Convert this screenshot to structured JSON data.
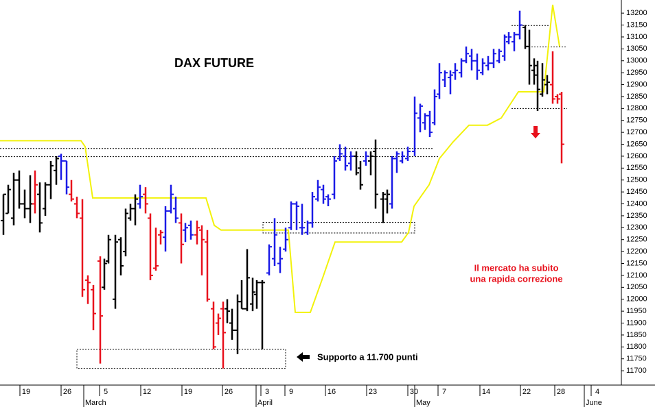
{
  "chart_data": {
    "type": "ohlc",
    "title": "DAX FUTURE",
    "annotations": [
      "Il mercato ha subito",
      "una rapida correzione",
      "Supporto a 11.700 punti"
    ],
    "xlim": [
      0,
      905
    ],
    "ylim": [
      11640,
      13255
    ],
    "yticks": [
      11700,
      11750,
      11800,
      11850,
      11900,
      11950,
      12000,
      12050,
      12100,
      12150,
      12200,
      12250,
      12300,
      12350,
      12400,
      12450,
      12500,
      12550,
      12600,
      12650,
      12700,
      12750,
      12800,
      12850,
      12900,
      12950,
      13000,
      13050,
      13100,
      13150,
      13200
    ],
    "xticks": [
      {
        "value": 29,
        "label": "19"
      },
      {
        "value": 89,
        "label": "26"
      },
      {
        "value": 145,
        "label": "5"
      },
      {
        "value": 205,
        "label": "12"
      },
      {
        "value": 265,
        "label": "19"
      },
      {
        "value": 324,
        "label": "26"
      },
      {
        "value": 380,
        "label": "3"
      },
      {
        "value": 415,
        "label": "9"
      },
      {
        "value": 474,
        "label": "16"
      },
      {
        "value": 534,
        "label": "23"
      },
      {
        "value": 594,
        "label": "30"
      },
      {
        "value": 638,
        "label": "7"
      },
      {
        "value": 699,
        "label": "14"
      },
      {
        "value": 758,
        "label": "22"
      },
      {
        "value": 808,
        "label": "28"
      },
      {
        "value": 861,
        "label": "4"
      }
    ],
    "months": [
      {
        "value": 122,
        "label": "March"
      },
      {
        "value": 373,
        "label": "April"
      },
      {
        "value": 604,
        "label": "May"
      },
      {
        "value": 851,
        "label": "June"
      }
    ],
    "palette": {
      "b": "#1a1ae6",
      "k": "#000000",
      "r": "#e8101c"
    },
    "x": [
      5,
      12,
      20,
      28,
      36,
      44,
      51,
      58,
      66,
      74,
      82,
      89,
      97,
      104,
      112,
      120,
      128,
      136,
      146,
      152,
      158,
      168,
      176,
      183,
      190,
      197,
      204,
      212,
      219,
      227,
      234,
      241,
      249,
      256,
      264,
      270,
      278,
      287,
      294,
      302,
      311,
      318,
      325,
      331,
      338,
      346,
      352,
      360,
      368,
      374,
      382,
      392,
      400,
      408,
      416,
      424,
      432,
      440,
      448,
      455,
      463,
      471,
      478,
      487,
      495,
      503,
      511,
      519,
      525,
      533,
      540,
      547,
      558,
      564,
      571,
      578,
      586,
      594,
      604,
      612,
      619,
      626,
      633,
      640,
      648,
      656,
      663,
      672,
      679,
      687,
      695,
      703,
      711,
      719,
      727,
      735,
      741,
      749,
      757,
      765,
      771,
      778,
      783,
      790,
      797,
      805,
      812,
      818
    ],
    "high": [
      12440,
      12480,
      12530,
      12540,
      12460,
      12520,
      12540,
      12490,
      12490,
      12580,
      12600,
      12610,
      12580,
      12500,
      12430,
      12420,
      12100,
      12060,
      12180,
      12170,
      12270,
      12270,
      12260,
      12380,
      12400,
      12440,
      12480,
      12470,
      12360,
      12300,
      12290,
      12390,
      12480,
      12430,
      12360,
      12320,
      12330,
      12330,
      12310,
      12290,
      11990,
      11940,
      11990,
      12000,
      11960,
      12020,
      12080,
      12210,
      12090,
      12080,
      12080,
      12230,
      12340,
      12220,
      12300,
      12410,
      12410,
      12400,
      12330,
      12450,
      12500,
      12480,
      12440,
      12600,
      12650,
      12640,
      12620,
      12620,
      12580,
      12620,
      12620,
      12670,
      12450,
      12460,
      12600,
      12620,
      12620,
      12640,
      12850,
      12820,
      12780,
      12790,
      12880,
      12990,
      12960,
      12960,
      12990,
      13010,
      13060,
      13050,
      13030,
      13010,
      13020,
      13050,
      13050,
      13110,
      13120,
      13120,
      13210,
      13150,
      13130,
      13010,
      13000,
      12990,
      12940,
      13040,
      12860,
      12870
    ],
    "low": [
      12270,
      12360,
      12310,
      12380,
      12340,
      12320,
      12360,
      12280,
      12350,
      12420,
      12480,
      12500,
      12440,
      12410,
      12340,
      12010,
      11980,
      11870,
      11730,
      12040,
      12150,
      11960,
      12100,
      12180,
      12330,
      12310,
      12380,
      12360,
      12080,
      12120,
      12230,
      12200,
      12360,
      12320,
      12150,
      12240,
      12250,
      12230,
      12100,
      11990,
      11790,
      11850,
      11710,
      11900,
      11830,
      11770,
      11960,
      11950,
      11950,
      11960,
      11790,
      12100,
      12140,
      12110,
      12200,
      12290,
      12290,
      12270,
      12270,
      12300,
      12410,
      12400,
      12390,
      12420,
      12580,
      12540,
      12540,
      12520,
      12460,
      12560,
      12520,
      12380,
      12320,
      12360,
      12380,
      12530,
      12570,
      12580,
      12600,
      12700,
      12710,
      12680,
      12730,
      12840,
      12890,
      12860,
      12920,
      12930,
      12990,
      12960,
      12920,
      12940,
      12960,
      12970,
      12990,
      13000,
      13070,
      13040,
      13090,
      13050,
      12900,
      12900,
      12790,
      12850,
      12860,
      12820,
      12820,
      12570
    ],
    "open": [
      12330,
      12360,
      12340,
      12500,
      12400,
      12380,
      12400,
      12440,
      12380,
      12480,
      12540,
      12600,
      12580,
      12440,
      12400,
      12340,
      12080,
      12040,
      12160,
      12050,
      12160,
      12000,
      12250,
      12200,
      12340,
      12380,
      12400,
      12440,
      12340,
      12130,
      12270,
      12260,
      12370,
      12380,
      12320,
      12290,
      12310,
      12270,
      12290,
      12240,
      11960,
      11900,
      11960,
      11960,
      11900,
      11870,
      11990,
      11960,
      11980,
      12020,
      12070,
      12110,
      12170,
      12150,
      12210,
      12300,
      12400,
      12300,
      12280,
      12320,
      12420,
      12460,
      12430,
      12440,
      12590,
      12600,
      12570,
      12600,
      12550,
      12580,
      12580,
      12620,
      12420,
      12420,
      12400,
      12590,
      12580,
      12590,
      12620,
      12760,
      12740,
      12770,
      12740,
      12860,
      12920,
      12930,
      12950,
      12950,
      13000,
      13020,
      13000,
      12950,
      12980,
      12990,
      13000,
      13020,
      13080,
      13080,
      13110,
      13140,
      13060,
      12960,
      12940,
      12860,
      12900,
      12900,
      12850,
      12860
    ],
    "close": [
      12440,
      12460,
      12500,
      12400,
      12380,
      12400,
      12480,
      12320,
      12480,
      12560,
      12590,
      12580,
      12470,
      12420,
      12360,
      12040,
      12070,
      11940,
      11930,
      12150,
      12250,
      12240,
      12140,
      12360,
      12380,
      12420,
      12430,
      12400,
      12100,
      12140,
      12280,
      12370,
      12440,
      12340,
      12230,
      12300,
      12270,
      12300,
      12250,
      12000,
      11800,
      11920,
      11860,
      11950,
      11870,
      11990,
      11960,
      12090,
      12030,
      12070,
      12070,
      12220,
      12270,
      12170,
      12250,
      12400,
      12390,
      12300,
      12320,
      12430,
      12470,
      12420,
      12420,
      12580,
      12610,
      12560,
      12600,
      12530,
      12480,
      12600,
      12600,
      12440,
      12440,
      12440,
      12590,
      12610,
      12600,
      12620,
      12780,
      12810,
      12770,
      12700,
      12850,
      12950,
      12950,
      12940,
      12960,
      13000,
      13030,
      13000,
      12960,
      12990,
      12990,
      13030,
      13040,
      13100,
      13100,
      13110,
      13150,
      13060,
      12980,
      12980,
      12880,
      12920,
      12910,
      12840,
      12840,
      12650
    ],
    "bar_color": [
      "k",
      "k",
      "k",
      "k",
      "k",
      "k",
      "r",
      "k",
      "k",
      "k",
      "k",
      "b",
      "b",
      "r",
      "r",
      "r",
      "r",
      "r",
      "r",
      "k",
      "k",
      "k",
      "k",
      "k",
      "k",
      "k",
      "b",
      "r",
      "r",
      "r",
      "r",
      "b",
      "b",
      "b",
      "r",
      "b",
      "b",
      "r",
      "r",
      "r",
      "r",
      "r",
      "r",
      "k",
      "k",
      "k",
      "k",
      "k",
      "k",
      "k",
      "k",
      "b",
      "b",
      "b",
      "b",
      "b",
      "b",
      "b",
      "b",
      "b",
      "b",
      "b",
      "b",
      "b",
      "b",
      "b",
      "b",
      "k",
      "k",
      "b",
      "k",
      "k",
      "k",
      "k",
      "b",
      "b",
      "b",
      "b",
      "b",
      "b",
      "b",
      "b",
      "b",
      "b",
      "b",
      "b",
      "b",
      "b",
      "b",
      "b",
      "b",
      "b",
      "b",
      "b",
      "b",
      "b",
      "b",
      "b",
      "b",
      "k",
      "k",
      "k",
      "k",
      "k",
      "k",
      "r",
      "r",
      "r"
    ],
    "stop_line": {
      "color": "#f2f20a",
      "x": [
        0,
        118,
        124,
        135,
        300,
        312,
        322,
        420,
        430,
        452,
        470,
        488,
        585,
        595,
        603,
        625,
        640,
        660,
        683,
        710,
        730,
        755,
        792,
        805,
        815
      ],
      "y": [
        12665,
        12665,
        12640,
        12425,
        12425,
        12310,
        12290,
        12290,
        11945,
        11945,
        12090,
        12240,
        12240,
        12280,
        12390,
        12480,
        12590,
        12660,
        12730,
        12730,
        12760,
        12870,
        12870,
        13235,
        13060
      ]
    },
    "levels": [
      {
        "y": 12632,
        "x": [
          0,
          630
        ]
      },
      {
        "y": 12598,
        "x": [
          0,
          638
        ]
      },
      {
        "y": 13148,
        "x": [
          745,
          802
        ]
      },
      {
        "y": 13058,
        "x": [
          770,
          826
        ]
      },
      {
        "y": 12800,
        "x": [
          745,
          826
        ]
      }
    ],
    "boxes": [
      {
        "x": [
          383,
          604
        ],
        "y": [
          12278,
          12322
        ]
      },
      {
        "x": [
          112,
          416
        ],
        "y": [
          11710,
          11790
        ]
      }
    ]
  }
}
